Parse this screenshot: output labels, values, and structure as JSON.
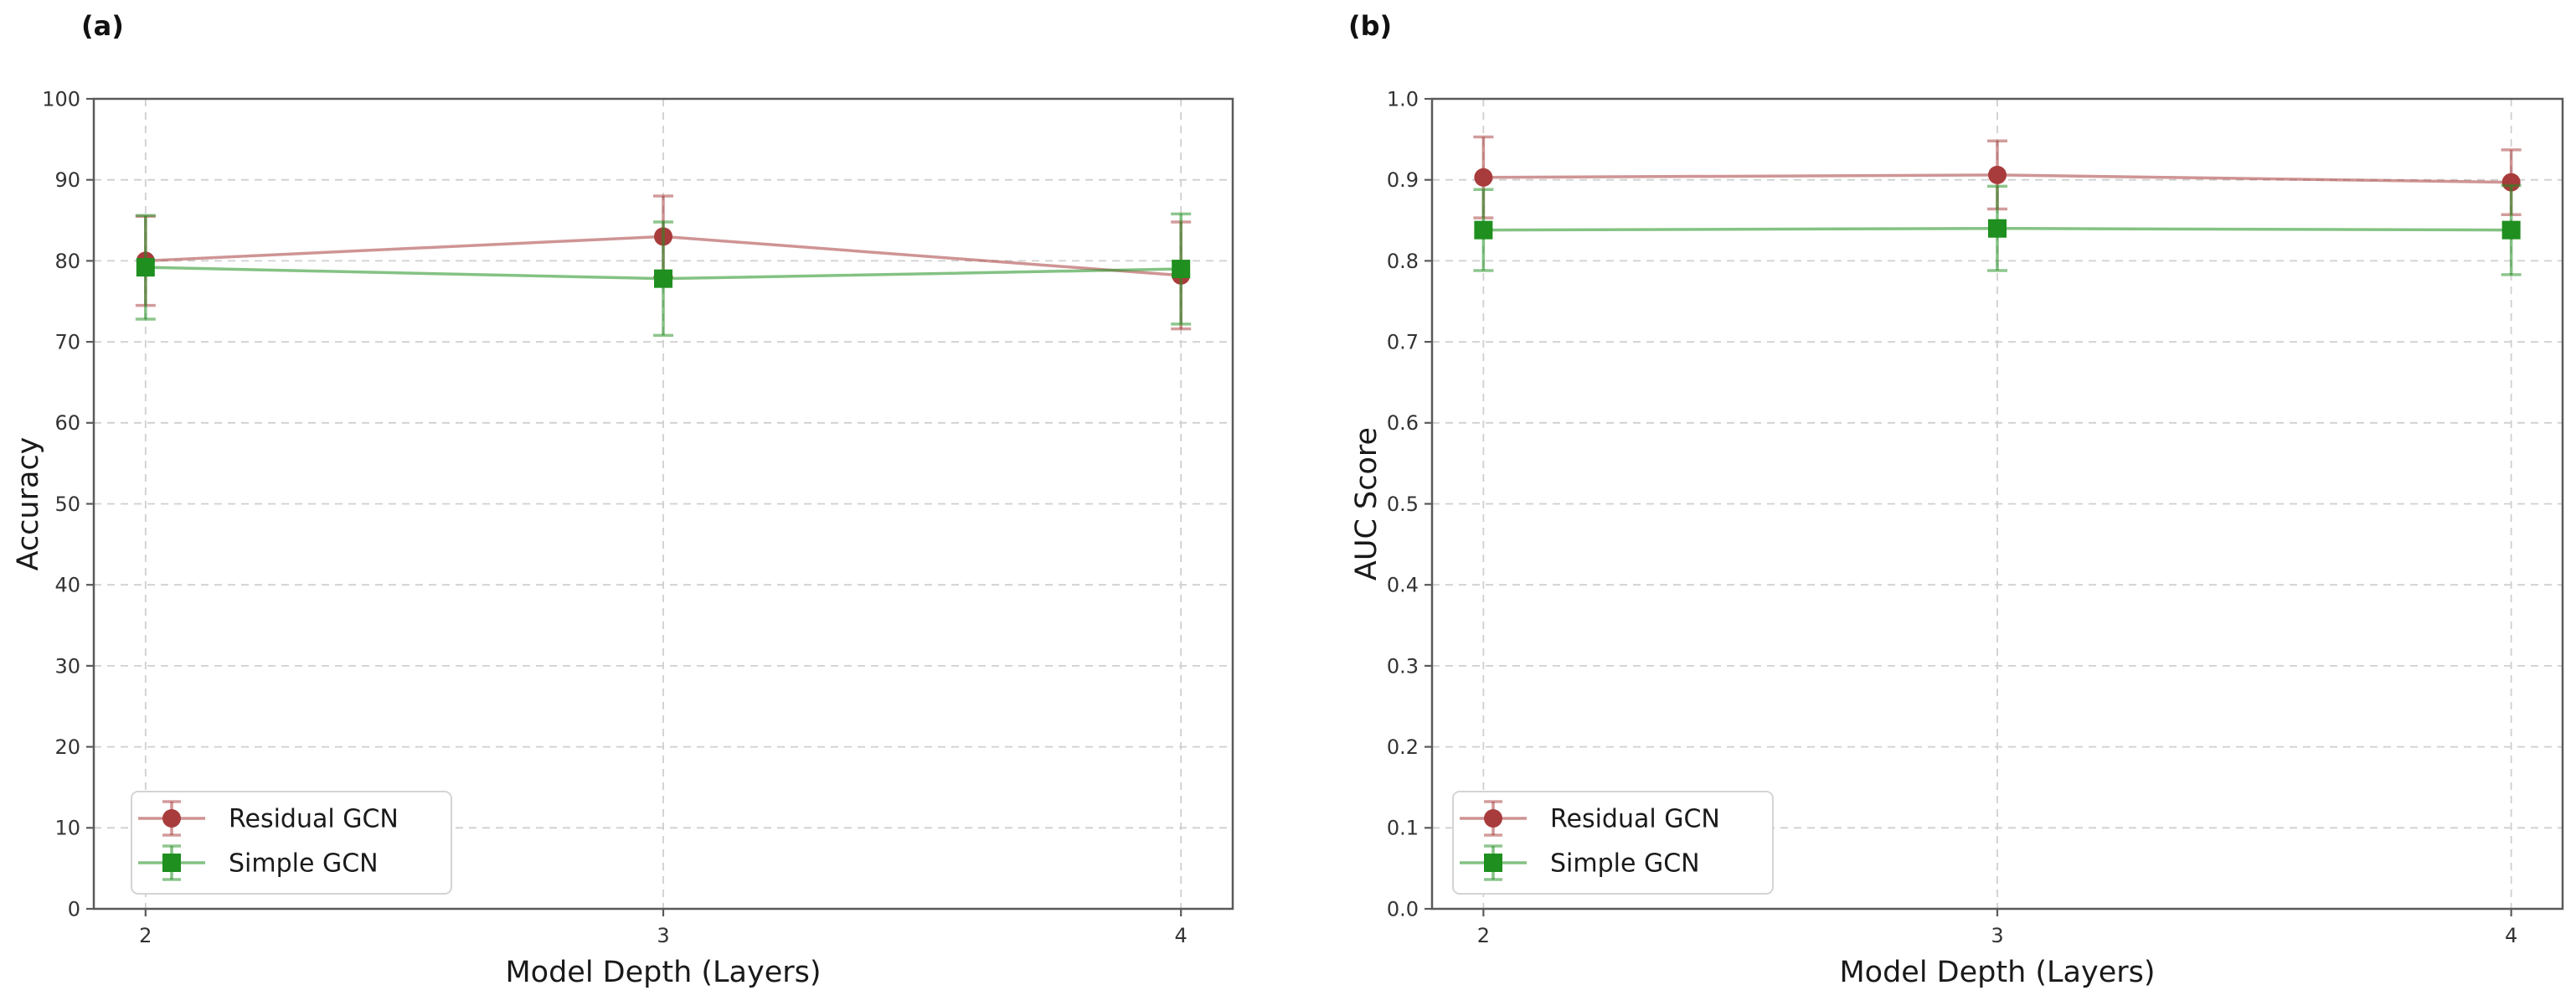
{
  "figure": {
    "background_color": "#ffffff",
    "grid_color": "#cfcfcf",
    "spine_color": "#5a5a5a",
    "tick_label_color": "#333333",
    "axis_label_color": "#1a1a1a",
    "legend_border_color": "#d4d4d4",
    "legend_background": "#ffffff"
  },
  "chart_data": [
    {
      "type": "line",
      "panel_label": "(a)",
      "xlabel": "Model Depth (Layers)",
      "ylabel": "Accuracy",
      "x": [
        2,
        3,
        4
      ],
      "xtick_labels": [
        "2",
        "3",
        "4"
      ],
      "xlim": [
        1.9,
        4.1
      ],
      "ylim": [
        0,
        100
      ],
      "yticks": [
        0,
        10,
        20,
        30,
        40,
        50,
        60,
        70,
        80,
        90,
        100
      ],
      "ytick_labels": [
        "0",
        "10",
        "20",
        "30",
        "40",
        "50",
        "60",
        "70",
        "80",
        "90",
        "100"
      ],
      "grid": true,
      "legend_position": "lower left",
      "legend_entries": [
        "Residual GCN",
        "Simple GCN"
      ],
      "series": [
        {
          "name": "Residual GCN",
          "marker": "circle",
          "color": "#a83c3c",
          "values": [
            80.0,
            83.0,
            78.2
          ],
          "yerr": [
            5.5,
            5.0,
            6.6
          ]
        },
        {
          "name": "Simple GCN",
          "marker": "square",
          "color": "#1f8f1f",
          "values": [
            79.2,
            77.8,
            79.0
          ],
          "yerr": [
            6.4,
            7.0,
            6.8
          ]
        }
      ]
    },
    {
      "type": "line",
      "panel_label": "(b)",
      "xlabel": "Model Depth (Layers)",
      "ylabel": "AUC Score",
      "x": [
        2,
        3,
        4
      ],
      "xtick_labels": [
        "2",
        "3",
        "4"
      ],
      "xlim": [
        1.9,
        4.1
      ],
      "ylim": [
        0,
        1.0
      ],
      "yticks": [
        0,
        0.1,
        0.2,
        0.3,
        0.4,
        0.5,
        0.6,
        0.7,
        0.8,
        0.9,
        1.0
      ],
      "ytick_labels": [
        "0.0",
        "0.1",
        "0.2",
        "0.3",
        "0.4",
        "0.5",
        "0.6",
        "0.7",
        "0.8",
        "0.9",
        "1.0"
      ],
      "grid": true,
      "legend_position": "lower left",
      "legend_entries": [
        "Residual GCN",
        "Simple GCN"
      ],
      "series": [
        {
          "name": "Residual GCN",
          "marker": "circle",
          "color": "#a83c3c",
          "values": [
            0.903,
            0.906,
            0.897
          ],
          "yerr": [
            0.05,
            0.042,
            0.04
          ]
        },
        {
          "name": "Simple GCN",
          "marker": "square",
          "color": "#1f8f1f",
          "values": [
            0.838,
            0.84,
            0.838
          ],
          "yerr": [
            0.05,
            0.052,
            0.055
          ]
        }
      ]
    }
  ]
}
